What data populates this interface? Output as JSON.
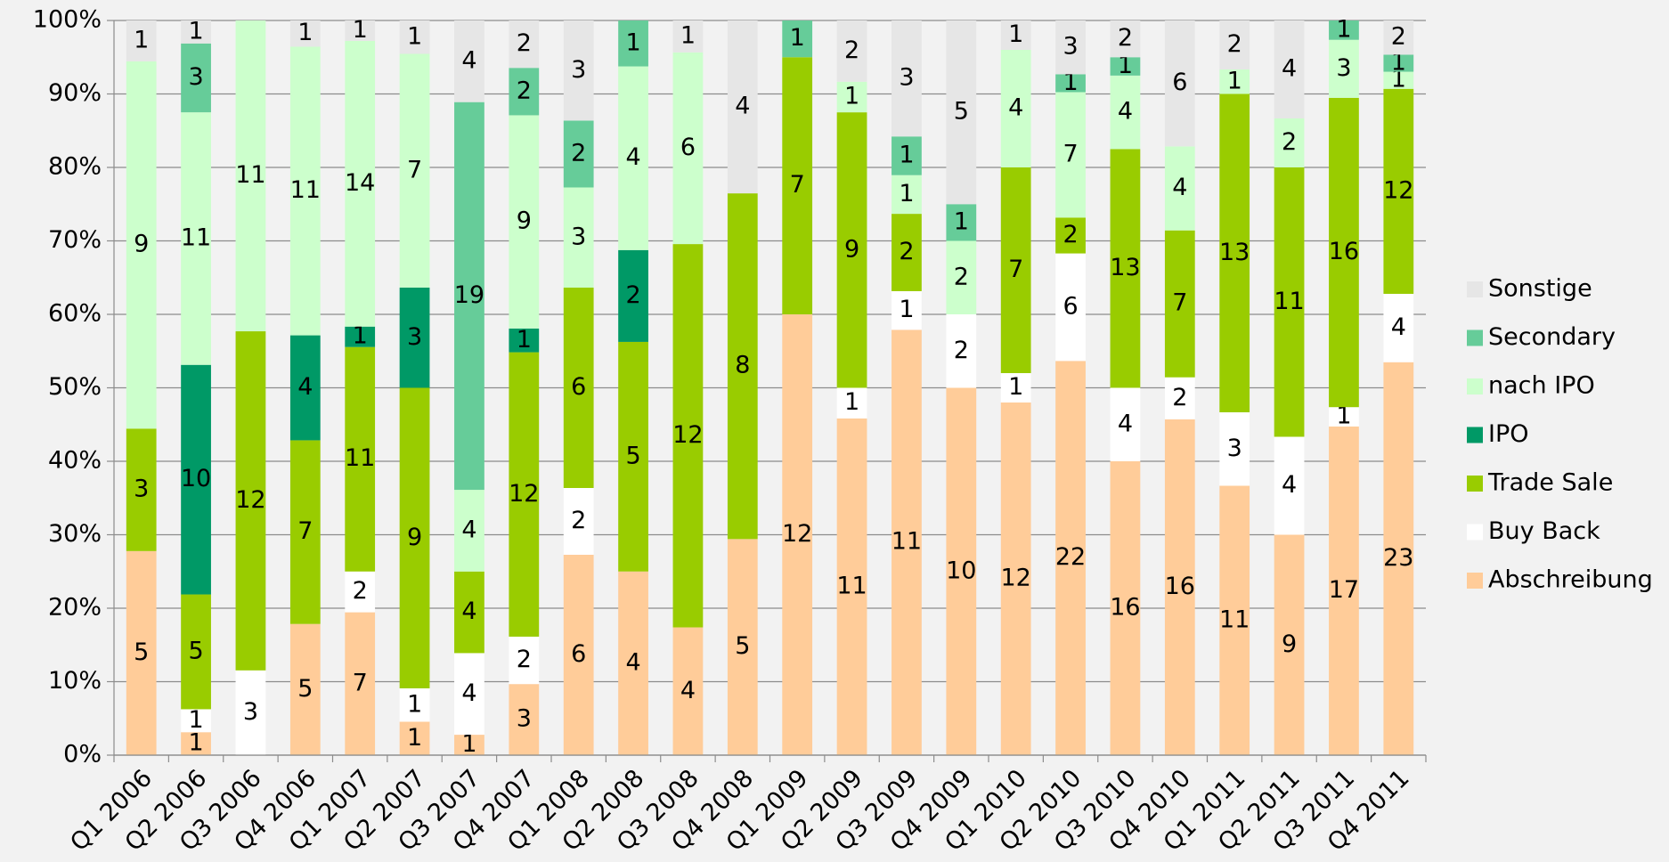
{
  "chart_data": {
    "type": "bar",
    "stacked": "percent",
    "categories": [
      "Q1 2006",
      "Q2 2006",
      "Q3 2006",
      "Q4 2006",
      "Q1 2007",
      "Q2 2007",
      "Q3 2007",
      "Q4 2007",
      "Q1 2008",
      "Q2 2008",
      "Q3 2008",
      "Q4 2008",
      "Q1 2009",
      "Q2 2009",
      "Q3 2009",
      "Q4 2009",
      "Q1 2010",
      "Q2 2010",
      "Q3 2010",
      "Q4 2010",
      "Q1 2011",
      "Q2 2011",
      "Q3 2011",
      "Q4 2011"
    ],
    "series": [
      {
        "name": "Abschreibung",
        "color": "#ffcc99",
        "values": [
          5,
          1,
          0,
          5,
          7,
          1,
          1,
          3,
          6,
          4,
          4,
          5,
          12,
          11,
          11,
          10,
          12,
          22,
          16,
          16,
          11,
          9,
          17,
          23
        ]
      },
      {
        "name": "Buy Back",
        "color": "#ffffff",
        "values": [
          0,
          1,
          3,
          0,
          2,
          1,
          4,
          2,
          2,
          0,
          0,
          0,
          0,
          1,
          1,
          2,
          1,
          6,
          4,
          2,
          3,
          4,
          1,
          4
        ]
      },
      {
        "name": "Trade Sale",
        "color": "#99cc00",
        "values": [
          3,
          5,
          12,
          7,
          11,
          9,
          4,
          12,
          6,
          5,
          12,
          8,
          7,
          9,
          2,
          0,
          7,
          2,
          13,
          7,
          13,
          11,
          16,
          12
        ]
      },
      {
        "name": "IPO",
        "color": "#009966",
        "values": [
          0,
          10,
          0,
          4,
          1,
          3,
          0,
          1,
          0,
          2,
          0,
          0,
          0,
          0,
          0,
          0,
          0,
          0,
          0,
          0,
          0,
          0,
          0,
          0
        ]
      },
      {
        "name": "nach IPO",
        "color": "#ccffcc",
        "values": [
          9,
          11,
          11,
          11,
          14,
          7,
          4,
          9,
          3,
          4,
          6,
          0,
          0,
          1,
          1,
          2,
          4,
          7,
          4,
          4,
          1,
          2,
          3,
          1
        ]
      },
      {
        "name": "Secondary",
        "color": "#66cc99",
        "values": [
          0,
          3,
          0,
          0,
          0,
          0,
          19,
          2,
          2,
          1,
          0,
          0,
          1,
          0,
          1,
          1,
          0,
          1,
          1,
          0,
          0,
          0,
          1,
          1
        ]
      },
      {
        "name": "Sonstige",
        "color": "#e6e6e6",
        "values": [
          1,
          1,
          0,
          1,
          1,
          1,
          4,
          2,
          3,
          0,
          1,
          4,
          0,
          2,
          3,
          5,
          1,
          3,
          2,
          6,
          2,
          4,
          0,
          2
        ]
      }
    ],
    "ylim": [
      0,
      100
    ],
    "yticks": [
      {
        "value": 0,
        "label": "0%"
      },
      {
        "value": 10,
        "label": "10%"
      },
      {
        "value": 20,
        "label": "20%"
      },
      {
        "value": 30,
        "label": "30%"
      },
      {
        "value": 40,
        "label": "40%"
      },
      {
        "value": 50,
        "label": "50%"
      },
      {
        "value": 60,
        "label": "60%"
      },
      {
        "value": 70,
        "label": "70%"
      },
      {
        "value": 80,
        "label": "80%"
      },
      {
        "value": 90,
        "label": "90%"
      },
      {
        "value": 100,
        "label": "100%"
      }
    ],
    "grid": true,
    "legend": "right"
  }
}
